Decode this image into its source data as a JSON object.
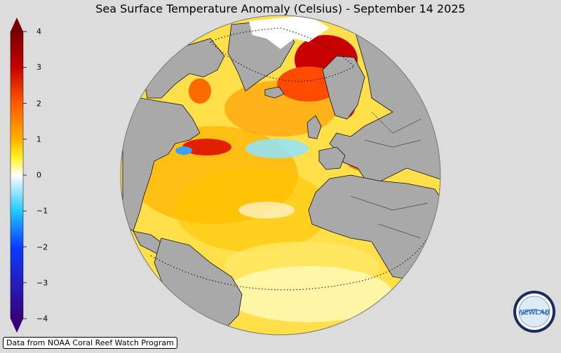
{
  "title": "Sea Surface Temperature Anomaly (Celsius) - September 14 2025",
  "colorbar": {
    "min": -4,
    "max": 4,
    "ticks": [
      {
        "value": 4,
        "label": "4"
      },
      {
        "value": 3,
        "label": "3"
      },
      {
        "value": 2,
        "label": "2"
      },
      {
        "value": 1,
        "label": "1"
      },
      {
        "value": 0,
        "label": "0"
      },
      {
        "value": -1,
        "label": "−1"
      },
      {
        "value": -2,
        "label": "−2"
      },
      {
        "value": -3,
        "label": "−3"
      },
      {
        "value": -4,
        "label": "−4"
      }
    ],
    "colors": [
      "#3a007a",
      "#0a3cff",
      "#22c8ff",
      "#ffffff",
      "#fff21e",
      "#ffb000",
      "#ff5a00",
      "#c80000",
      "#7a0000"
    ]
  },
  "attribution": "Data from NOAA Coral Reef Watch Program",
  "logo": {
    "text": "NEWLAB",
    "icon": "nexlab-logo"
  },
  "map": {
    "land_color": "#a9a9a9",
    "background_color": "#dcdcdc"
  }
}
